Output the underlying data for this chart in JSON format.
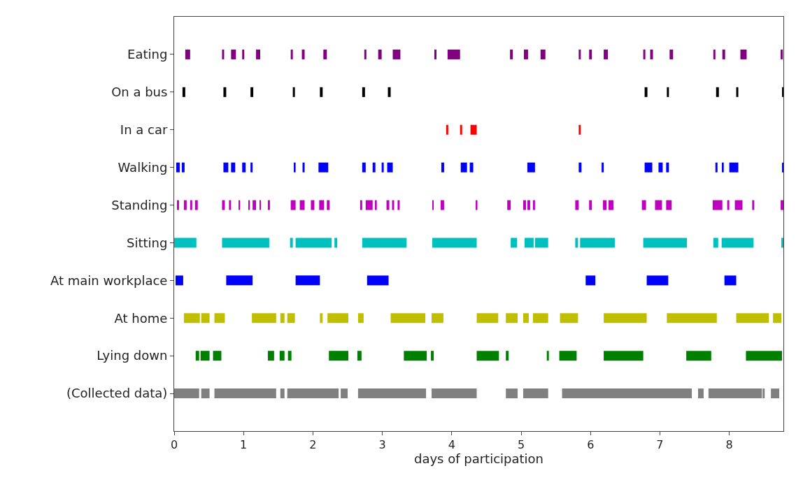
{
  "chart_data": {
    "type": "bar",
    "orientation": "horizontal",
    "xlabel": "days of participation",
    "categories": [
      "Eating",
      "On a bus",
      "In a car",
      "Walking",
      "Standing",
      "Sitting",
      "At main workplace",
      "At home",
      "Lying down",
      "(Collected data)"
    ],
    "xlim": [
      0,
      8.78
    ],
    "xticks": [
      0,
      1,
      2,
      3,
      4,
      5,
      6,
      7,
      8
    ],
    "grid": false,
    "series": [
      {
        "colors": [
          "#800080",
          "#000000",
          "#ff0000",
          "#0000ff",
          "#bf00bf",
          "#00bfbf",
          "#0000ff",
          "#bfbf00",
          "#008000",
          "#808080"
        ],
        "base": [
          0.16,
          0.12,
          3.92,
          0.03,
          0.04,
          0,
          0.02,
          0.14,
          0.31,
          0
        ],
        "values": [
          0.07,
          0.04,
          0.03,
          0.05,
          0.03,
          0.32,
          0.11,
          0.23,
          0.05,
          0.36
        ]
      },
      {
        "colors": [
          "#800080",
          "#000000",
          "#ff0000",
          "#0000ff",
          "#bf00bf",
          "#00bfbf",
          "#0000ff",
          "#bfbf00",
          "#008000",
          "#808080"
        ],
        "base": [
          0.69,
          0.71,
          4.12,
          0.11,
          0.14,
          0.69,
          0.75,
          0.39,
          0.38,
          0.39
        ],
        "values": [
          0.03,
          0.04,
          0.03,
          0.04,
          0.04,
          0.68,
          0.38,
          0.12,
          0.13,
          0.12
        ]
      },
      {
        "colors": [
          "#800080",
          "#000000",
          "#ff0000",
          "#0000ff",
          "#bf00bf",
          "#00bfbf",
          "#0000ff",
          "#bfbf00",
          "#008000",
          "#808080"
        ],
        "base": [
          0.82,
          1.1,
          4.27,
          0.71,
          0.23,
          1.67,
          1.75,
          0.58,
          0.56,
          0.58
        ],
        "values": [
          0.07,
          0.04,
          0.09,
          0.07,
          0.03,
          0.04,
          0.35,
          0.15,
          0.12,
          0.89
        ]
      },
      {
        "colors": [
          "#800080",
          "#000000",
          "#ff0000",
          "#0000ff",
          "#bf00bf",
          "#00bfbf",
          "#0000ff",
          "#bfbf00",
          "#008000",
          "#808080"
        ],
        "base": [
          0.98,
          1.71,
          5.83,
          0.82,
          0.3,
          1.75,
          2.78,
          1.12,
          1.35,
          1.53
        ],
        "values": [
          0.03,
          0.03,
          0.03,
          0.06,
          0.04,
          0.52,
          0.31,
          0.35,
          0.09,
          0.06
        ]
      },
      {
        "colors": [
          "#800080",
          "#000000",
          null,
          "#0000ff",
          "#bf00bf",
          "#00bfbf",
          "#0000ff",
          "#bfbf00",
          "#008000",
          "#808080"
        ],
        "base": [
          1.18,
          2.1,
          null,
          0.98,
          0.69,
          2.31,
          5.93,
          1.53,
          1.52,
          1.63
        ],
        "values": [
          0.06,
          0.04,
          null,
          0.05,
          0.04,
          0.04,
          0.14,
          0.06,
          0.07,
          0.74
        ]
      },
      {
        "colors": [
          "#800080",
          "#000000",
          null,
          "#0000ff",
          "#bf00bf",
          "#00bfbf",
          "#0000ff",
          "#bfbf00",
          "#008000",
          "#808080"
        ],
        "base": [
          1.68,
          2.71,
          null,
          1.1,
          0.79,
          2.71,
          6.81,
          1.63,
          1.64,
          2.4
        ],
        "values": [
          0.03,
          0.04,
          null,
          0.03,
          0.03,
          0.64,
          0.31,
          0.11,
          0.05,
          0.1
        ]
      },
      {
        "colors": [
          "#800080",
          "#000000",
          null,
          "#0000ff",
          "#bf00bf",
          "#00bfbf",
          "#0000ff",
          "#bfbf00",
          "#008000",
          "#808080"
        ],
        "base": [
          1.84,
          3.08,
          null,
          1.73,
          0.93,
          3.72,
          7.93,
          2.1,
          2.23,
          2.65
        ],
        "values": [
          0.04,
          0.04,
          null,
          0.02,
          0.02,
          0.64,
          0.17,
          0.04,
          0.28,
          0.98
        ]
      },
      {
        "colors": [
          "#800080",
          "#000000",
          null,
          "#0000ff",
          "#bf00bf",
          "#00bfbf",
          null,
          "#bfbf00",
          "#008000",
          "#808080"
        ],
        "base": [
          2.15,
          6.78,
          null,
          1.85,
          1.07,
          4.85,
          null,
          2.21,
          2.64,
          3.71
        ],
        "values": [
          0.05,
          0.04,
          null,
          0.03,
          0.02,
          0.09,
          null,
          0.3,
          0.06,
          0.65
        ]
      },
      {
        "colors": [
          "#800080",
          "#000000",
          null,
          "#0000ff",
          "#bf00bf",
          "#00bfbf",
          null,
          "#bfbf00",
          "#008000",
          "#808080"
        ],
        "base": [
          2.74,
          7.1,
          null,
          2.08,
          1.13,
          5.05,
          null,
          2.65,
          3.31,
          4.78
        ],
        "values": [
          0.03,
          0.03,
          null,
          0.14,
          0.05,
          0.13,
          null,
          0.08,
          0.33,
          0.17
        ]
      },
      {
        "colors": [
          "#800080",
          "#000000",
          null,
          "#0000ff",
          "#bf00bf",
          "#00bfbf",
          null,
          "#bfbf00",
          "#008000",
          "#808080"
        ],
        "base": [
          2.94,
          7.81,
          null,
          2.71,
          1.23,
          5.2,
          null,
          3.12,
          3.7,
          5.03
        ],
        "values": [
          0.05,
          0.04,
          null,
          0.05,
          0.02,
          0.19,
          null,
          0.5,
          0.04,
          0.36
        ]
      },
      {
        "colors": [
          "#800080",
          "#000000",
          null,
          "#0000ff",
          "#bf00bf",
          "#00bfbf",
          null,
          "#bfbf00",
          "#008000",
          "#808080"
        ],
        "base": [
          3.15,
          8.1,
          null,
          2.86,
          1.35,
          5.78,
          null,
          3.71,
          4.36,
          5.59
        ],
        "values": [
          0.11,
          0.03,
          null,
          0.04,
          0.03,
          0.04,
          null,
          0.17,
          0.32,
          1.87
        ]
      },
      {
        "colors": [
          "#800080",
          "#000000",
          null,
          "#0000ff",
          "#bf00bf",
          "#00bfbf",
          null,
          "#bfbf00",
          "#008000",
          "#808080"
        ],
        "base": [
          3.75,
          8.76,
          null,
          2.99,
          1.68,
          5.85,
          null,
          4.36,
          4.78,
          7.55
        ],
        "values": [
          0.03,
          0.02,
          null,
          0.03,
          0.07,
          0.5,
          null,
          0.31,
          0.04,
          0.08
        ]
      },
      {
        "colors": [
          "#800080",
          null,
          null,
          "#0000ff",
          "#bf00bf",
          "#00bfbf",
          null,
          "#bfbf00",
          "#008000",
          "#808080"
        ],
        "base": [
          3.94,
          null,
          null,
          3.07,
          1.81,
          6.76,
          null,
          4.78,
          5.37,
          7.7
        ],
        "values": [
          0.18,
          null,
          null,
          0.08,
          0.07,
          0.63,
          null,
          0.17,
          0.03,
          0.77
        ]
      },
      {
        "colors": [
          "#800080",
          null,
          null,
          "#0000ff",
          "#bf00bf",
          "#00bfbf",
          null,
          "#bfbf00",
          "#008000",
          "#808080"
        ],
        "base": [
          4.84,
          null,
          null,
          3.85,
          1.97,
          7.77,
          null,
          5.03,
          5.55,
          8.48
        ],
        "values": [
          0.04,
          null,
          null,
          0.04,
          0.05,
          0.07,
          null,
          0.08,
          0.25,
          0.03
        ]
      },
      {
        "colors": [
          "#800080",
          null,
          null,
          "#0000ff",
          "#bf00bf",
          "#00bfbf",
          null,
          "#bfbf00",
          "#008000",
          "#808080"
        ],
        "base": [
          5.04,
          null,
          null,
          4.13,
          2.09,
          7.89,
          null,
          5.17,
          6.19,
          8.6
        ],
        "values": [
          0.06,
          null,
          null,
          0.09,
          0.07,
          0.46,
          null,
          0.22,
          0.57,
          0.12
        ]
      },
      {
        "colors": [
          "#800080",
          null,
          null,
          "#0000ff",
          "#bf00bf",
          "#00bfbf",
          null,
          "#bfbf00",
          "#008000",
          null
        ],
        "base": [
          5.28,
          null,
          null,
          4.26,
          2.2,
          8.75,
          null,
          5.56,
          7.38,
          null
        ],
        "values": [
          0.07,
          null,
          null,
          0.05,
          0.04,
          0.03,
          null,
          0.26,
          0.36,
          null
        ]
      },
      {
        "colors": [
          "#800080",
          null,
          null,
          "#0000ff",
          "#bf00bf",
          null,
          null,
          "#bfbf00",
          "#008000",
          null
        ],
        "base": [
          5.83,
          null,
          null,
          5.09,
          2.68,
          null,
          null,
          6.19,
          8.24,
          null
        ],
        "values": [
          0.03,
          null,
          null,
          0.11,
          0.03,
          null,
          null,
          0.62,
          0.52,
          null
        ]
      },
      {
        "colors": [
          "#800080",
          null,
          null,
          "#0000ff",
          "#bf00bf",
          null,
          null,
          "#bfbf00",
          null,
          null
        ],
        "base": [
          5.98,
          null,
          null,
          5.83,
          2.76,
          null,
          null,
          7.1,
          null,
          null
        ],
        "values": [
          0.04,
          null,
          null,
          0.04,
          0.1,
          null,
          null,
          0.72,
          null,
          null
        ]
      },
      {
        "colors": [
          "#800080",
          null,
          null,
          "#0000ff",
          "#bf00bf",
          null,
          null,
          "#bfbf00",
          null,
          null
        ],
        "base": [
          6.19,
          null,
          null,
          6.16,
          2.9,
          null,
          null,
          8.1,
          null,
          null
        ],
        "values": [
          0.06,
          null,
          null,
          0.03,
          0.02,
          null,
          null,
          0.47,
          null,
          null
        ]
      },
      {
        "colors": [
          "#800080",
          null,
          null,
          "#0000ff",
          "#bf00bf",
          null,
          null,
          "#bfbf00",
          null,
          null
        ],
        "base": [
          6.76,
          null,
          null,
          6.78,
          3.06,
          null,
          null,
          8.63,
          null,
          null
        ],
        "values": [
          0.03,
          null,
          null,
          0.11,
          0.04,
          null,
          null,
          0.12,
          null,
          null
        ]
      },
      {
        "colors": [
          "#800080",
          null,
          null,
          "#0000ff",
          "#bf00bf",
          null,
          null,
          null,
          null,
          null
        ],
        "base": [
          6.86,
          null,
          null,
          6.98,
          3.14,
          null,
          null,
          null,
          null,
          null
        ],
        "values": [
          0.04,
          null,
          null,
          0.06,
          0.03,
          null,
          null,
          null,
          null,
          null
        ]
      },
      {
        "colors": [
          "#800080",
          null,
          null,
          "#0000ff",
          "#bf00bf",
          null,
          null,
          null,
          null,
          null
        ],
        "base": [
          7.14,
          null,
          null,
          7.09,
          3.22,
          null,
          null,
          null,
          null,
          null
        ],
        "values": [
          0.05,
          null,
          null,
          0.04,
          0.03,
          null,
          null,
          null,
          null,
          null
        ]
      },
      {
        "colors": [
          "#800080",
          null,
          null,
          "#0000ff",
          "#bf00bf",
          null,
          null,
          null,
          null,
          null
        ],
        "base": [
          7.77,
          null,
          null,
          7.8,
          3.72,
          null,
          null,
          null,
          null,
          null
        ],
        "values": [
          0.03,
          null,
          null,
          0.03,
          0.02,
          null,
          null,
          null,
          null,
          null
        ]
      },
      {
        "colors": [
          "#800080",
          null,
          null,
          "#0000ff",
          "#bf00bf",
          null,
          null,
          null,
          null,
          null
        ],
        "base": [
          7.9,
          null,
          null,
          7.9,
          3.84,
          null,
          null,
          null,
          null,
          null
        ],
        "values": [
          0.04,
          null,
          null,
          0.02,
          0.05,
          null,
          null,
          null,
          null,
          null
        ]
      },
      {
        "colors": [
          "#800080",
          null,
          null,
          "#0000ff",
          "#bf00bf",
          null,
          null,
          null,
          null,
          null
        ],
        "base": [
          8.16,
          null,
          null,
          8.0,
          4.35,
          null,
          null,
          null,
          null,
          null
        ],
        "values": [
          0.09,
          null,
          null,
          0.13,
          0.02,
          null,
          null,
          null,
          null,
          null
        ]
      },
      {
        "colors": [
          "#800080",
          null,
          null,
          "#0000ff",
          "#bf00bf",
          null,
          null,
          null,
          null,
          null
        ],
        "base": [
          8.74,
          null,
          null,
          8.76,
          4.8,
          null,
          null,
          null,
          null,
          null
        ],
        "values": [
          0.03,
          null,
          null,
          0.02,
          0.05,
          null,
          null,
          null,
          null,
          null
        ]
      },
      {
        "color": "#bf00bf",
        "base": [
          null,
          null,
          null,
          null,
          5.03,
          null,
          null,
          null,
          null,
          null
        ],
        "values": [
          null,
          null,
          null,
          null,
          0.04,
          null,
          null,
          null,
          null,
          null
        ]
      },
      {
        "color": "#bf00bf",
        "base": [
          null,
          null,
          null,
          null,
          5.09,
          null,
          null,
          null,
          null,
          null
        ],
        "values": [
          null,
          null,
          null,
          null,
          0.04,
          null,
          null,
          null,
          null,
          null
        ]
      },
      {
        "color": "#bf00bf",
        "base": [
          null,
          null,
          null,
          null,
          5.17,
          null,
          null,
          null,
          null,
          null
        ],
        "values": [
          null,
          null,
          null,
          null,
          0.03,
          null,
          null,
          null,
          null,
          null
        ]
      },
      {
        "color": "#bf00bf",
        "base": [
          null,
          null,
          null,
          null,
          5.78,
          null,
          null,
          null,
          null,
          null
        ],
        "values": [
          null,
          null,
          null,
          null,
          0.05,
          null,
          null,
          null,
          null,
          null
        ]
      },
      {
        "color": "#bf00bf",
        "base": [
          null,
          null,
          null,
          null,
          5.98,
          null,
          null,
          null,
          null,
          null
        ],
        "values": [
          null,
          null,
          null,
          null,
          0.04,
          null,
          null,
          null,
          null,
          null
        ]
      },
      {
        "color": "#bf00bf",
        "base": [
          null,
          null,
          null,
          null,
          6.18,
          null,
          null,
          null,
          null,
          null
        ],
        "values": [
          null,
          null,
          null,
          null,
          0.05,
          null,
          null,
          null,
          null,
          null
        ]
      },
      {
        "color": "#bf00bf",
        "base": [
          null,
          null,
          null,
          null,
          6.26,
          null,
          null,
          null,
          null,
          null
        ],
        "values": [
          null,
          null,
          null,
          null,
          0.07,
          null,
          null,
          null,
          null,
          null
        ]
      },
      {
        "color": "#bf00bf",
        "base": [
          null,
          null,
          null,
          null,
          6.74,
          null,
          null,
          null,
          null,
          null
        ],
        "values": [
          null,
          null,
          null,
          null,
          0.06,
          null,
          null,
          null,
          null,
          null
        ]
      },
      {
        "color": "#bf00bf",
        "base": [
          null,
          null,
          null,
          null,
          6.93,
          null,
          null,
          null,
          null,
          null
        ],
        "values": [
          null,
          null,
          null,
          null,
          0.1,
          null,
          null,
          null,
          null,
          null
        ]
      },
      {
        "color": "#bf00bf",
        "base": [
          null,
          null,
          null,
          null,
          7.09,
          null,
          null,
          null,
          null,
          null
        ],
        "values": [
          null,
          null,
          null,
          null,
          0.08,
          null,
          null,
          null,
          null,
          null
        ]
      },
      {
        "color": "#bf00bf",
        "base": [
          null,
          null,
          null,
          null,
          7.76,
          null,
          null,
          null,
          null,
          null
        ],
        "values": [
          null,
          null,
          null,
          null,
          0.14,
          null,
          null,
          null,
          null,
          null
        ]
      },
      {
        "color": "#bf00bf",
        "base": [
          null,
          null,
          null,
          null,
          7.97,
          null,
          null,
          null,
          null,
          null
        ],
        "values": [
          null,
          null,
          null,
          null,
          0.03,
          null,
          null,
          null,
          null,
          null
        ]
      },
      {
        "color": "#bf00bf",
        "base": [
          null,
          null,
          null,
          null,
          8.08,
          null,
          null,
          null,
          null,
          null
        ],
        "values": [
          null,
          null,
          null,
          null,
          0.11,
          null,
          null,
          null,
          null,
          null
        ]
      },
      {
        "color": "#bf00bf",
        "base": [
          null,
          null,
          null,
          null,
          8.33,
          null,
          null,
          null,
          null,
          null
        ],
        "values": [
          null,
          null,
          null,
          null,
          0.03,
          null,
          null,
          null,
          null,
          null
        ]
      },
      {
        "color": "#bf00bf",
        "base": [
          null,
          null,
          null,
          null,
          8.74,
          null,
          null,
          null,
          null,
          null
        ],
        "values": [
          null,
          null,
          null,
          null,
          0.04,
          null,
          null,
          null,
          null,
          null
        ]
      }
    ]
  }
}
